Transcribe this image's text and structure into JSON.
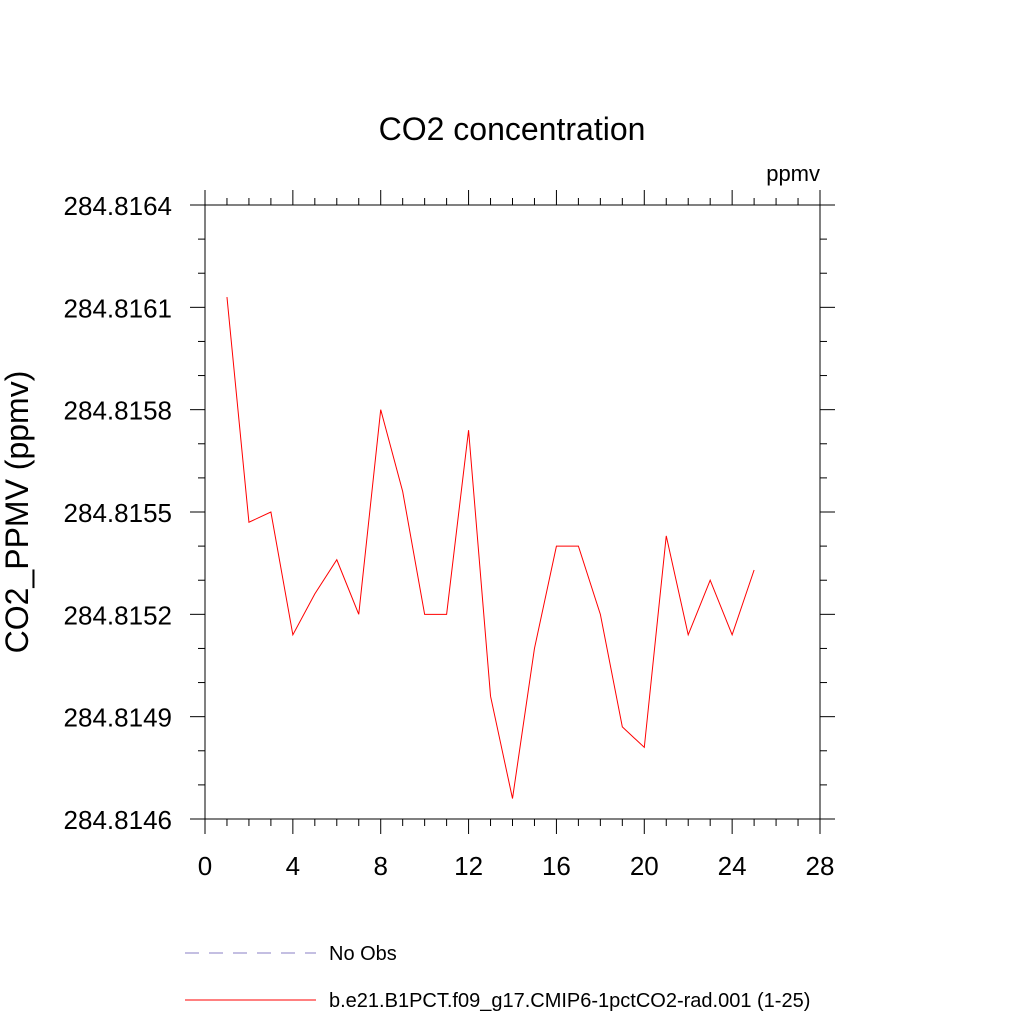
{
  "chart_data": {
    "type": "line",
    "title": "CO2 concentration",
    "units_label": "ppmv",
    "ylabel": "CO2_PPMV  (ppmv)",
    "xlabel": "",
    "xlim": [
      0,
      28
    ],
    "ylim": [
      284.8146,
      284.8164
    ],
    "x_ticks": [
      0,
      4,
      8,
      12,
      16,
      20,
      24,
      28
    ],
    "y_ticks": [
      "284.8146",
      "284.8149",
      "284.8152",
      "284.8155",
      "284.8158",
      "284.8161",
      "284.8164"
    ],
    "grid": false,
    "legend_position": "bottom",
    "series": [
      {
        "name": "No Obs",
        "color": "#8a7fc6",
        "dash": "dashed",
        "x": [],
        "values": []
      },
      {
        "name": "b.e21.B1PCT.f09_g17.CMIP6-1pctCO2-rad.001 (1-25)",
        "color": "#ff0000",
        "dash": "solid",
        "x": [
          1,
          2,
          3,
          4,
          5,
          6,
          7,
          8,
          9,
          10,
          11,
          12,
          13,
          14,
          15,
          16,
          17,
          18,
          19,
          20,
          21,
          22,
          23,
          24,
          25
        ],
        "values": [
          284.81613,
          284.81547,
          284.8155,
          284.81514,
          284.81526,
          284.81536,
          284.8152,
          284.8158,
          284.81556,
          284.8152,
          284.8152,
          284.81574,
          284.81496,
          284.81466,
          284.8151,
          284.8154,
          284.8154,
          284.8152,
          284.81487,
          284.81481,
          284.81543,
          284.81514,
          284.8153,
          284.81514,
          284.81533
        ]
      }
    ]
  }
}
